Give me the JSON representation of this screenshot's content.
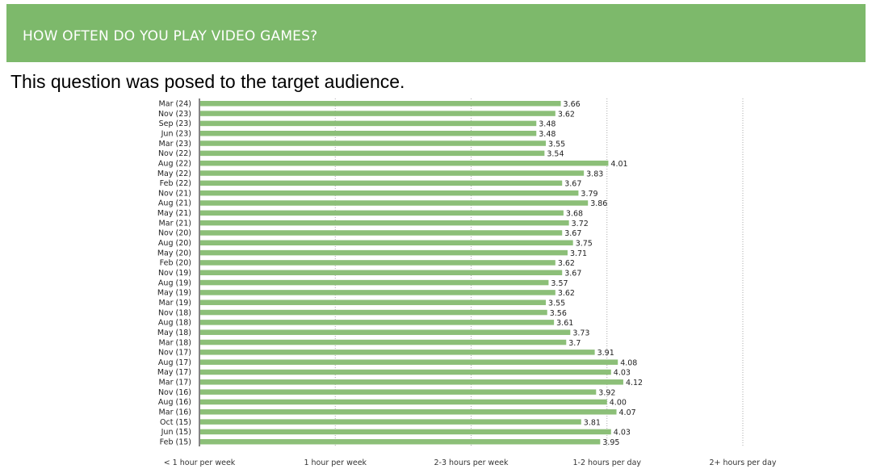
{
  "header": {
    "title": "HOW OFTEN DO YOU PLAY VIDEO GAMES?"
  },
  "subtitle": "This question was posed to the target audience.",
  "colors": {
    "header": "#7db96b",
    "bar": "#8cbf78"
  },
  "chart_data": {
    "type": "bar",
    "orientation": "horizontal",
    "categories": [
      "Mar (24)",
      "Nov (23)",
      "Sep (23)",
      "Jun (23)",
      "Mar (23)",
      "Nov (22)",
      "Aug (22)",
      "May (22)",
      "Feb (22)",
      "Nov (21)",
      "Aug (21)",
      "May (21)",
      "Mar (21)",
      "Nov (20)",
      "Aug (20)",
      "May (20)",
      "Feb (20)",
      "Nov (19)",
      "Aug (19)",
      "May (19)",
      "Mar (19)",
      "Nov (18)",
      "Aug (18)",
      "May (18)",
      "Mar (18)",
      "Nov (17)",
      "Aug (17)",
      "May (17)",
      "Mar (17)",
      "Nov (16)",
      "Aug (16)",
      "Mar (16)",
      "Oct (15)",
      "Jun (15)",
      "Feb (15)"
    ],
    "values": [
      3.66,
      3.62,
      3.48,
      3.48,
      3.55,
      3.54,
      4.01,
      3.83,
      3.67,
      3.79,
      3.86,
      3.68,
      3.72,
      3.67,
      3.75,
      3.71,
      3.62,
      3.67,
      3.57,
      3.62,
      3.55,
      3.56,
      3.61,
      3.73,
      3.7,
      3.91,
      4.08,
      4.03,
      4.12,
      3.92,
      4.0,
      4.07,
      3.81,
      4.03,
      3.95
    ],
    "value_labels": [
      "3.66",
      "3.62",
      "3.48",
      "3.48",
      "3.55",
      "3.54",
      "4.01",
      "3.83",
      "3.67",
      "3.79",
      "3.86",
      "3.68",
      "3.72",
      "3.67",
      "3.75",
      "3.71",
      "3.62",
      "3.67",
      "3.57",
      "3.62",
      "3.55",
      "3.56",
      "3.61",
      "3.73",
      "3.7",
      "3.91",
      "4.08",
      "4.03",
      "4.12",
      "3.92",
      "4.00",
      "4.07",
      "3.81",
      "4.03",
      "3.95"
    ],
    "x_ticks": [
      1,
      2,
      3,
      4,
      5
    ],
    "x_tick_labels": [
      "< 1 hour per week",
      "1 hour per week",
      "2-3 hours per week",
      "1-2 hours per day",
      "2+ hours per day"
    ],
    "xlim": [
      1,
      5
    ],
    "grid": "vertical dashed",
    "legend": "none"
  }
}
